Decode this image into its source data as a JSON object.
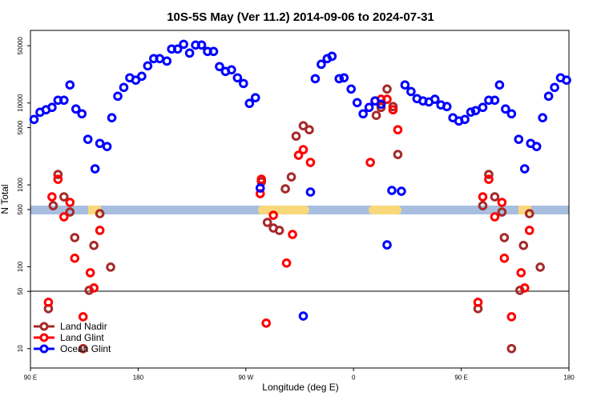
{
  "chart_data": {
    "type": "scatter",
    "title": "10S-5S May (Ver 11.2)   2014-09-06 to 2024-07-31",
    "x_label": "Longitude (deg E)",
    "y_label": "N Total",
    "log_y": true,
    "xlim": [
      90,
      540
    ],
    "xticks": [
      {
        "value": 90,
        "label": "90 E"
      },
      {
        "value": 180,
        "label": "180"
      },
      {
        "value": 270,
        "label": "90 W"
      },
      {
        "value": 360,
        "label": "0"
      },
      {
        "value": 450,
        "label": "90 E"
      },
      {
        "value": 540,
        "label": "180"
      }
    ],
    "ylim": [
      5.8,
      77000
    ],
    "yticks": [
      10,
      50,
      100,
      500,
      1000,
      5000,
      10000,
      50000
    ],
    "legend": "bottom-left",
    "series": [
      {
        "name": "Land Nadir",
        "color": "#a52a2a",
        "x": [
          105,
          109,
          113,
          118,
          123,
          127,
          134,
          139,
          143,
          148,
          157,
          283,
          288,
          293,
          298,
          303,
          308,
          312,
          318,
          323,
          379,
          383,
          388,
          393,
          397,
          464,
          468,
          473,
          478,
          484,
          486,
          492,
          499,
          502,
          507,
          516
        ],
        "values": [
          30.8,
          557,
          1340,
          714,
          466,
          227,
          10,
          51.5,
          182,
          445,
          98.9,
          1090,
          348,
          297,
          278,
          894,
          1250,
          3940,
          5270,
          4710,
          7060,
          8840,
          14800,
          9040,
          2350,
          30.8,
          557,
          1340,
          714,
          466,
          227,
          10,
          51.5,
          182,
          445,
          98.9
        ]
      },
      {
        "name": "Land Glint",
        "color": "#ff0000",
        "x": [
          105,
          108,
          113,
          118,
          123,
          127,
          134,
          140,
          143,
          148,
          282,
          283,
          287,
          293,
          304,
          309,
          314,
          318,
          324,
          374,
          378,
          383,
          388,
          393,
          397,
          464,
          468,
          473,
          478,
          484,
          486,
          492,
          500,
          503,
          507
        ],
        "values": [
          36.8,
          714,
          1170,
          407,
          610,
          127,
          24.5,
          84.5,
          55.1,
          278,
          781,
          1170,
          20.5,
          426,
          111,
          248,
          2300,
          2690,
          1880,
          1880,
          10600,
          11100,
          11100,
          8260,
          4710,
          36.8,
          714,
          1170,
          407,
          610,
          127,
          24.5,
          84.5,
          55.1,
          278
        ]
      },
      {
        "name": "Ocean Glint",
        "color": "#0000ff",
        "x": [
          93,
          98,
          103,
          108,
          113,
          118,
          123,
          128,
          133,
          138,
          144,
          148,
          154,
          158,
          163,
          168,
          173,
          178,
          183,
          188,
          193,
          198,
          204,
          208,
          213,
          218,
          223,
          228,
          233,
          238,
          243,
          248,
          253,
          258,
          263,
          268,
          273,
          278,
          282,
          318,
          324,
          328,
          333,
          338,
          342,
          348,
          352,
          358,
          363,
          368,
          373,
          378,
          383,
          388,
          392,
          400,
          403,
          408,
          413,
          418,
          423,
          428,
          433,
          438,
          443,
          448,
          453,
          458,
          462,
          468,
          473,
          478,
          482,
          487,
          492,
          498,
          503,
          508,
          513,
          518,
          523,
          528,
          533,
          538
        ],
        "values": [
          6300,
          7700,
          8260,
          8840,
          10800,
          10800,
          16600,
          8450,
          7380,
          3600,
          1570,
          3210,
          2940,
          6600,
          12100,
          15500,
          20300,
          19000,
          21200,
          28400,
          34800,
          34800,
          32500,
          45600,
          45600,
          52100,
          40700,
          51000,
          51000,
          42600,
          42600,
          27800,
          24300,
          25400,
          20300,
          17300,
          9890,
          11600,
          914,
          25,
          817,
          19800,
          29700,
          34800,
          37200,
          19800,
          20300,
          14800,
          10100,
          7380,
          8840,
          10600,
          9660,
          185,
          855,
          836,
          16600,
          13800,
          11300,
          10600,
          10300,
          11100,
          9460,
          9040,
          6600,
          6030,
          6300,
          7730,
          8070,
          8840,
          10800,
          10800,
          16600,
          8450,
          7380,
          3600,
          1570,
          3210,
          2940,
          6600,
          12100,
          15500,
          20300,
          19000
        ]
      }
    ]
  }
}
